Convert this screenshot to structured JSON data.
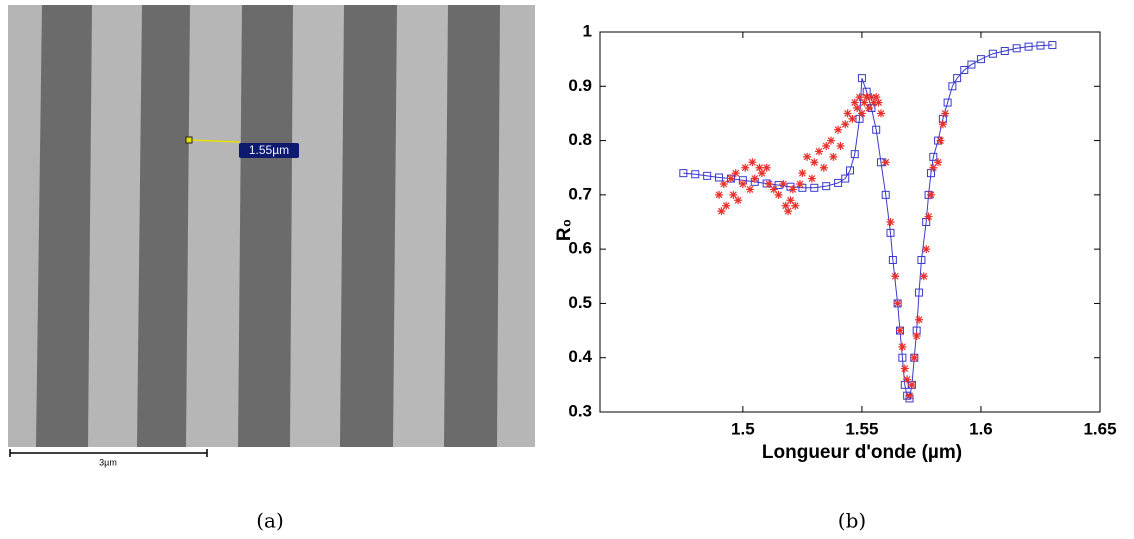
{
  "panel_a": {
    "measurement_label": "1.55µm",
    "scale_bar_label": "3µm",
    "caption": "(a)"
  },
  "panel_b": {
    "caption": "(b)"
  },
  "chart_data": {
    "type": "line",
    "xlabel": "Longueur d'onde (µm)",
    "ylabel": "R₀",
    "xlim": [
      1.44,
      1.65
    ],
    "xticks": [
      1.5,
      1.55,
      1.6,
      1.65
    ],
    "ylim": [
      0.3,
      1
    ],
    "yticks": [
      0.3,
      0.4,
      0.5,
      0.6,
      0.7,
      0.8,
      0.9,
      1
    ],
    "grid": false,
    "series": [
      {
        "color": "#3a3acc",
        "marker": "square",
        "line": true,
        "x": [
          1.475,
          1.48,
          1.485,
          1.49,
          1.495,
          1.5,
          1.505,
          1.51,
          1.515,
          1.52,
          1.525,
          1.53,
          1.535,
          1.54,
          1.543,
          1.545,
          1.547,
          1.549,
          1.55,
          1.552,
          1.554,
          1.556,
          1.558,
          1.56,
          1.562,
          1.563,
          1.565,
          1.566,
          1.567,
          1.568,
          1.569,
          1.57,
          1.571,
          1.572,
          1.573,
          1.574,
          1.575,
          1.577,
          1.578,
          1.579,
          1.58,
          1.582,
          1.584,
          1.586,
          1.588,
          1.59,
          1.593,
          1.596,
          1.6,
          1.605,
          1.61,
          1.615,
          1.62,
          1.625,
          1.63
        ],
        "values": [
          0.74,
          0.738,
          0.735,
          0.732,
          0.73,
          0.727,
          0.724,
          0.721,
          0.718,
          0.715,
          0.713,
          0.713,
          0.716,
          0.722,
          0.73,
          0.745,
          0.775,
          0.84,
          0.915,
          0.89,
          0.86,
          0.82,
          0.76,
          0.7,
          0.63,
          0.58,
          0.5,
          0.45,
          0.4,
          0.35,
          0.33,
          0.325,
          0.35,
          0.4,
          0.45,
          0.52,
          0.58,
          0.65,
          0.7,
          0.74,
          0.77,
          0.8,
          0.84,
          0.87,
          0.9,
          0.915,
          0.93,
          0.94,
          0.95,
          0.96,
          0.965,
          0.97,
          0.973,
          0.975,
          0.976
        ]
      },
      {
        "color": "#e8302a",
        "marker": "asterisk",
        "line": false,
        "x": [
          1.49,
          1.491,
          1.492,
          1.493,
          1.495,
          1.496,
          1.497,
          1.498,
          1.5,
          1.501,
          1.503,
          1.504,
          1.505,
          1.507,
          1.508,
          1.51,
          1.511,
          1.513,
          1.515,
          1.517,
          1.518,
          1.519,
          1.52,
          1.521,
          1.522,
          1.524,
          1.525,
          1.527,
          1.529,
          1.53,
          1.532,
          1.534,
          1.535,
          1.537,
          1.538,
          1.54,
          1.541,
          1.543,
          1.544,
          1.546,
          1.547,
          1.548,
          1.549,
          1.55,
          1.551,
          1.552,
          1.553,
          1.554,
          1.555,
          1.556,
          1.557,
          1.558,
          1.56,
          1.562,
          1.564,
          1.565,
          1.566,
          1.567,
          1.568,
          1.569,
          1.57,
          1.571,
          1.572,
          1.573,
          1.574,
          1.576,
          1.577,
          1.578,
          1.579,
          1.58,
          1.582,
          1.583,
          1.584,
          1.585
        ],
        "values": [
          0.7,
          0.67,
          0.72,
          0.68,
          0.73,
          0.7,
          0.74,
          0.69,
          0.72,
          0.75,
          0.71,
          0.76,
          0.73,
          0.75,
          0.74,
          0.75,
          0.72,
          0.71,
          0.7,
          0.72,
          0.68,
          0.67,
          0.69,
          0.71,
          0.68,
          0.72,
          0.74,
          0.77,
          0.73,
          0.76,
          0.78,
          0.75,
          0.79,
          0.8,
          0.77,
          0.82,
          0.79,
          0.83,
          0.85,
          0.84,
          0.87,
          0.86,
          0.88,
          0.85,
          0.87,
          0.88,
          0.86,
          0.88,
          0.87,
          0.88,
          0.87,
          0.85,
          0.76,
          0.65,
          0.55,
          0.5,
          0.45,
          0.42,
          0.38,
          0.36,
          0.33,
          0.35,
          0.4,
          0.44,
          0.47,
          0.55,
          0.6,
          0.66,
          0.7,
          0.75,
          0.76,
          0.8,
          0.83,
          0.85
        ]
      }
    ]
  }
}
